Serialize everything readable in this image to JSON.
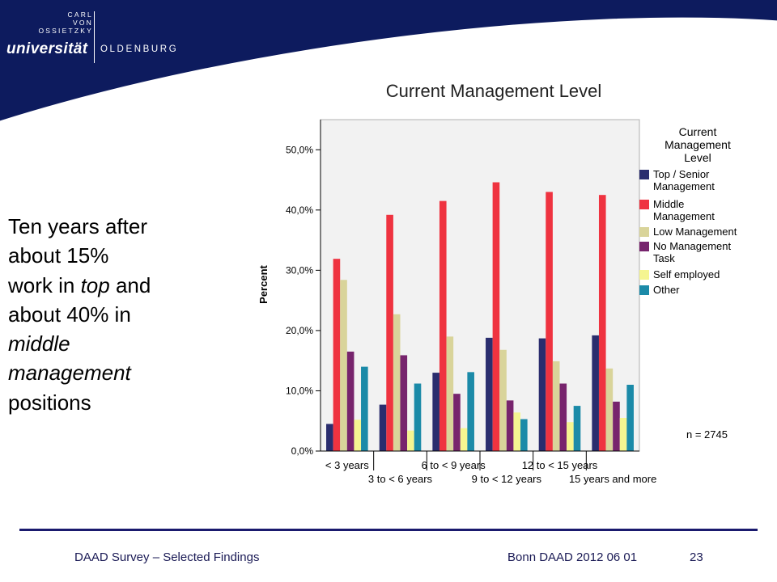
{
  "header": {
    "logo_lines": [
      "CARL",
      "VON",
      "OSSIETZKY"
    ],
    "logo_university": "universität",
    "logo_city": "OLDENBURG",
    "colors": {
      "navy": "#0d1b5e",
      "accent_line": "#ffffff"
    }
  },
  "slide": {
    "text_parts": [
      {
        "t": "Ten years after",
        "i": false,
        "br": true
      },
      {
        "t": "about 15%",
        "i": false,
        "br": true
      },
      {
        "t": "work in ",
        "i": false,
        "br": false
      },
      {
        "t": "top",
        "i": true,
        "br": false
      },
      {
        "t": " and",
        "i": false,
        "br": true
      },
      {
        "t": "about 40% in",
        "i": false,
        "br": true
      },
      {
        "t": "middle",
        "i": true,
        "br": true
      },
      {
        "t": "management",
        "i": true,
        "br": true
      },
      {
        "t": "positions",
        "i": false,
        "br": false
      }
    ]
  },
  "chart_data": {
    "type": "bar",
    "title": "Current Management Level",
    "ylabel": "Percent",
    "xlabel": "",
    "ylim": [
      0,
      55
    ],
    "yticks": [
      "0,0%",
      "10,0%",
      "20,0%",
      "30,0%",
      "40,0%",
      "50,0%"
    ],
    "categories": [
      "< 3 years",
      "3 to < 6 years",
      "6 to < 9 years",
      "9 to < 12 years",
      "12 to < 15 years",
      "15 years and more"
    ],
    "legend_title": "Current Management Level",
    "legend_placement": "right",
    "annotation": "n = 2745",
    "series": [
      {
        "name": "Top / Senior Management",
        "color": "#2a2d6e",
        "values": [
          4.5,
          7.7,
          13.0,
          18.8,
          18.7,
          19.2
        ]
      },
      {
        "name": "Middle Management",
        "color": "#ef3340",
        "values": [
          31.9,
          39.2,
          41.5,
          44.6,
          43.0,
          42.5
        ]
      },
      {
        "name": "Low Management",
        "color": "#d9d49a",
        "values": [
          28.4,
          22.7,
          19.0,
          16.8,
          14.9,
          13.7
        ]
      },
      {
        "name": "No Management Task",
        "color": "#77246d",
        "values": [
          16.5,
          15.9,
          9.5,
          8.4,
          11.2,
          8.2
        ]
      },
      {
        "name": "Self employed",
        "color": "#f5f591",
        "values": [
          5.2,
          3.4,
          3.8,
          6.4,
          4.8,
          5.5
        ]
      },
      {
        "name": "Other",
        "color": "#1b8aa8",
        "values": [
          14.0,
          11.2,
          13.1,
          5.3,
          7.5,
          11.0
        ]
      }
    ]
  },
  "footer": {
    "left": "DAAD Survey – Selected Findings",
    "right": "Bonn DAAD 2012 06 01",
    "page": "23"
  }
}
